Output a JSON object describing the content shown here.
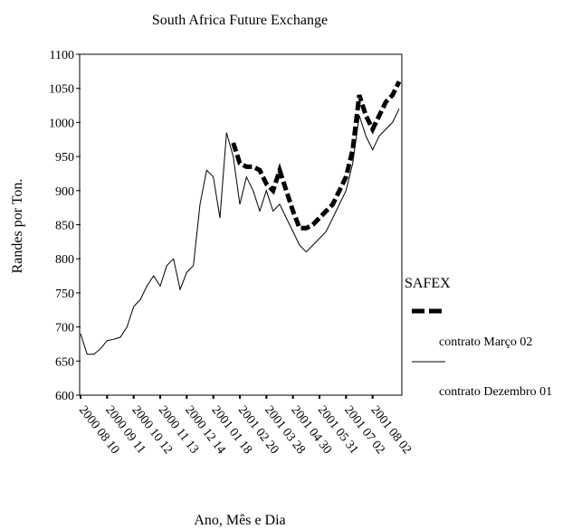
{
  "chart_data": {
    "type": "line",
    "title": "South Africa Future Exchange",
    "y_label": "Randes por Ton.",
    "x_label": "Ano, Mês e Dia",
    "legend_title": "SAFEX",
    "categories": [
      "2000 08 10",
      null,
      null,
      null,
      "2000 09 11",
      null,
      null,
      null,
      "2000 10 12",
      null,
      null,
      null,
      "2000 11 13",
      null,
      null,
      null,
      "2000 12 14",
      null,
      null,
      null,
      "2001 01 18",
      null,
      null,
      null,
      "2001 02 20",
      null,
      null,
      null,
      "2001 03 28",
      null,
      null,
      null,
      "2001 04 30",
      null,
      null,
      null,
      "2001 05 31",
      null,
      null,
      null,
      "2001 07 02",
      null,
      null,
      null,
      "2001 08 02",
      null,
      null,
      null,
      null
    ],
    "series": [
      {
        "name": "contrato Março 02",
        "color": "#000000",
        "style": "dashed",
        "values": [
          null,
          null,
          null,
          null,
          null,
          null,
          null,
          null,
          null,
          null,
          null,
          null,
          null,
          null,
          null,
          null,
          null,
          null,
          null,
          null,
          null,
          null,
          null,
          970,
          940,
          935,
          935,
          930,
          910,
          900,
          930,
          900,
          870,
          845,
          845,
          850,
          860,
          870,
          880,
          900,
          920,
          960,
          1040,
          1010,
          990,
          1010,
          1030,
          1040,
          1060
        ]
      },
      {
        "name": "contrato Dezembro 01",
        "color": "#000000",
        "style": "solid",
        "values": [
          690,
          660,
          660,
          668,
          680,
          682,
          685,
          700,
          730,
          740,
          760,
          775,
          760,
          790,
          800,
          755,
          780,
          790,
          880,
          930,
          920,
          860,
          985,
          950,
          880,
          920,
          900,
          870,
          900,
          870,
          880,
          860,
          840,
          820,
          810,
          820,
          830,
          840,
          860,
          880,
          900,
          940,
          1010,
          980,
          960,
          980,
          990,
          1000,
          1020
        ]
      }
    ],
    "ylim": [
      600,
      1100
    ],
    "yticks": [
      600,
      650,
      700,
      750,
      800,
      850,
      900,
      950,
      1000,
      1050,
      1100
    ],
    "legend": "right"
  }
}
